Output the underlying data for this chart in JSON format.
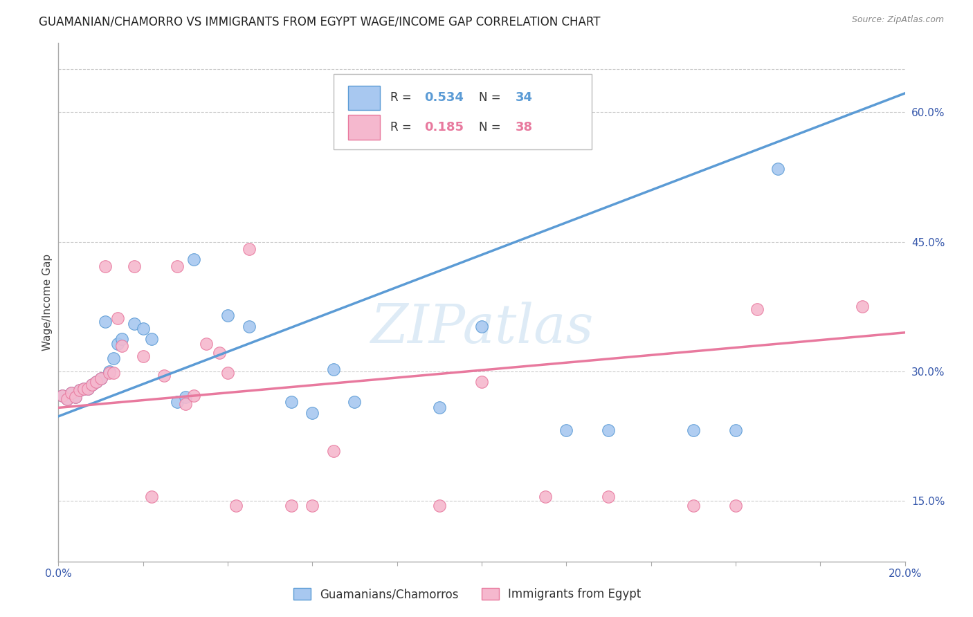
{
  "title": "GUAMANIAN/CHAMORRO VS IMMIGRANTS FROM EGYPT WAGE/INCOME GAP CORRELATION CHART",
  "source": "Source: ZipAtlas.com",
  "ylabel": "Wage/Income Gap",
  "right_yticks": [
    "60.0%",
    "45.0%",
    "30.0%",
    "15.0%"
  ],
  "right_ytick_vals": [
    0.6,
    0.45,
    0.3,
    0.15
  ],
  "watermark": "ZIPatlas",
  "legend1_label": "Guamanians/Chamorros",
  "legend2_label": "Immigrants from Egypt",
  "R1": "0.534",
  "N1": "34",
  "R2": "0.185",
  "N2": "38",
  "color_blue": "#A8C8F0",
  "color_pink": "#F5B8CE",
  "line_color_blue": "#5B9BD5",
  "line_color_pink": "#E8799E",
  "blue_x": [
    0.001,
    0.002,
    0.003,
    0.004,
    0.005,
    0.006,
    0.007,
    0.008,
    0.009,
    0.01,
    0.011,
    0.012,
    0.013,
    0.014,
    0.015,
    0.016,
    0.018,
    0.02,
    0.022,
    0.025,
    0.028,
    0.03,
    0.032,
    0.035,
    0.04,
    0.045,
    0.05,
    0.055,
    0.06,
    0.065,
    0.1,
    0.12,
    0.15,
    0.17
  ],
  "blue_y": [
    0.27,
    0.268,
    0.272,
    0.265,
    0.275,
    0.278,
    0.28,
    0.283,
    0.285,
    0.29,
    0.358,
    0.295,
    0.31,
    0.33,
    0.335,
    0.34,
    0.355,
    0.35,
    0.335,
    0.33,
    0.32,
    0.26,
    0.27,
    0.43,
    0.365,
    0.35,
    0.27,
    0.26,
    0.25,
    0.3,
    0.35,
    0.23,
    0.23,
    0.535
  ],
  "pink_x": [
    0.001,
    0.002,
    0.003,
    0.004,
    0.005,
    0.006,
    0.007,
    0.008,
    0.009,
    0.01,
    0.011,
    0.012,
    0.013,
    0.014,
    0.015,
    0.016,
    0.018,
    0.02,
    0.025,
    0.028,
    0.03,
    0.032,
    0.035,
    0.038,
    0.04,
    0.045,
    0.048,
    0.05,
    0.055,
    0.06,
    0.07,
    0.09,
    0.1,
    0.13,
    0.15,
    0.16,
    0.165,
    0.19
  ],
  "pink_y": [
    0.27,
    0.268,
    0.272,
    0.265,
    0.275,
    0.278,
    0.28,
    0.283,
    0.285,
    0.3,
    0.42,
    0.31,
    0.295,
    0.36,
    0.33,
    0.325,
    0.42,
    0.315,
    0.295,
    0.42,
    0.26,
    0.27,
    0.33,
    0.32,
    0.295,
    0.44,
    0.29,
    0.145,
    0.145,
    0.145,
    0.205,
    0.145,
    0.285,
    0.155,
    0.145,
    0.145,
    0.37,
    0.375
  ],
  "xlim": [
    0.0,
    0.2
  ],
  "ylim": [
    0.08,
    0.68
  ],
  "background_color": "#FFFFFF",
  "plot_bg_color": "#FFFFFF",
  "grid_color": "#CCCCCC"
}
